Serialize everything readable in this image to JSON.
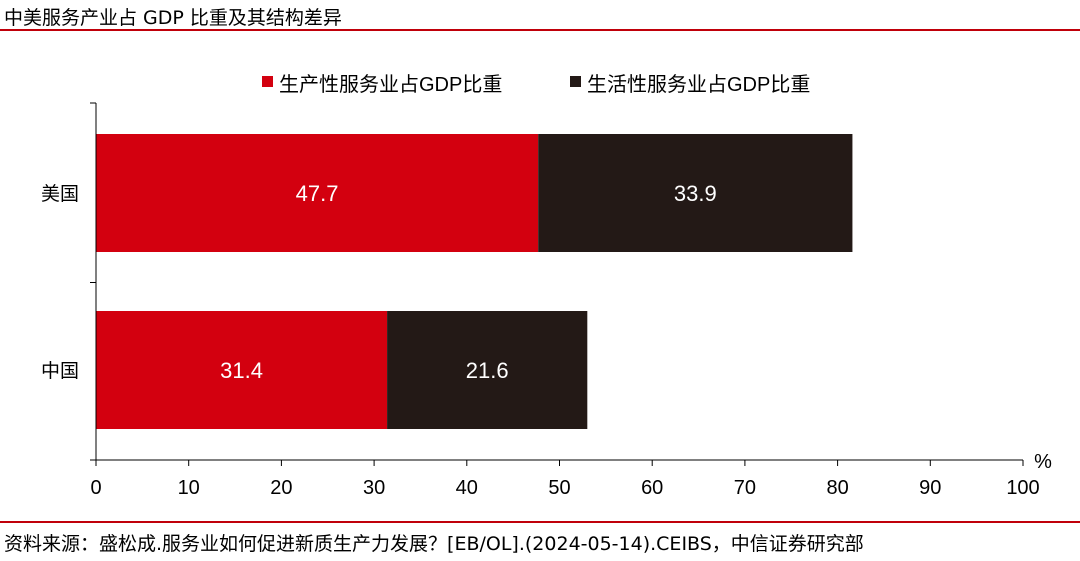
{
  "title": "中美服务产业占 GDP 比重及其结构差异",
  "source": "资料来源：盛松成.服务业如何促进新质生产力发展？[EB/OL].(2024-05-14).CEIBS，中信证券研究部",
  "chart_data": {
    "type": "bar",
    "orientation": "horizontal",
    "stacked": true,
    "categories": [
      "美国",
      "中国"
    ],
    "series": [
      {
        "name": "生产性服务业占GDP比重",
        "values": [
          47.7,
          31.4
        ],
        "color": "#d3000f"
      },
      {
        "name": "生活性服务业占GDP比重",
        "values": [
          33.9,
          21.6
        ],
        "color": "#231916"
      }
    ],
    "xunit": "%",
    "xlim": [
      0,
      100
    ],
    "xticks": [
      0,
      10,
      20,
      30,
      40,
      50,
      60,
      70,
      80,
      90,
      100
    ],
    "legend_position": "top-center",
    "grid": false,
    "data_labels": true,
    "label_color": "#ffffff"
  }
}
